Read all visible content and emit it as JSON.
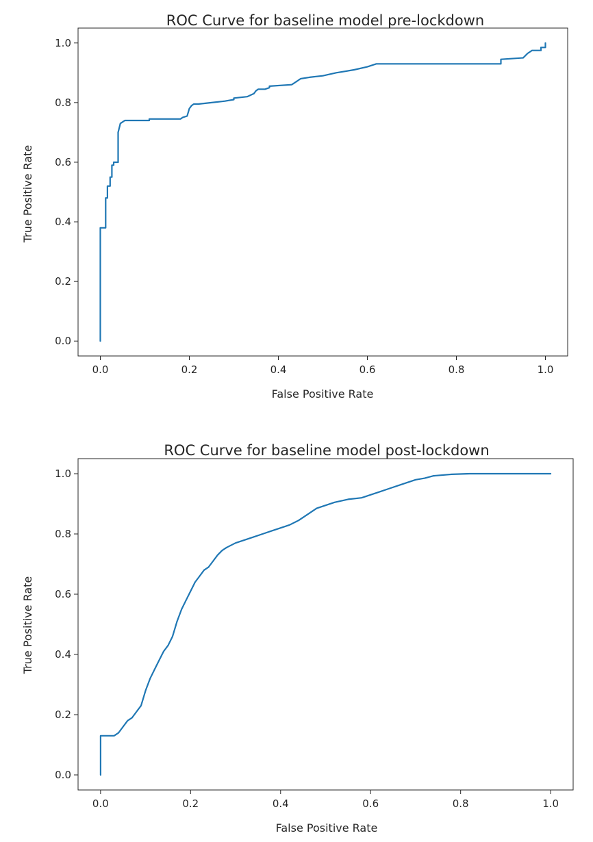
{
  "chart_data": [
    {
      "type": "line",
      "title": "ROC Curve for baseline model pre-lockdown",
      "xlabel": "False Positive Rate",
      "ylabel": "True Positive Rate",
      "xlim": [
        -0.05,
        1.05
      ],
      "ylim": [
        -0.05,
        1.05
      ],
      "xticks": [
        "0.0",
        "0.2",
        "0.4",
        "0.6",
        "0.8",
        "1.0"
      ],
      "yticks": [
        "0.0",
        "0.2",
        "0.4",
        "0.6",
        "0.8",
        "1.0"
      ],
      "grid": false,
      "color": "#1f77b4",
      "series": [
        {
          "x": [
            0.0,
            0.0,
            0.0,
            0.012,
            0.012,
            0.016,
            0.016,
            0.022,
            0.022,
            0.026,
            0.026,
            0.03,
            0.03,
            0.04,
            0.04,
            0.045,
            0.05,
            0.055,
            0.06,
            0.11,
            0.11,
            0.18,
            0.185,
            0.195,
            0.2,
            0.205,
            0.21,
            0.22,
            0.25,
            0.28,
            0.3,
            0.3,
            0.33,
            0.345,
            0.35,
            0.355,
            0.37,
            0.38,
            0.38,
            0.43,
            0.44,
            0.45,
            0.47,
            0.5,
            0.53,
            0.57,
            0.6,
            0.62,
            0.7,
            0.8,
            0.9,
            0.9,
            0.95,
            0.96,
            0.97,
            0.99,
            0.99,
            1.0,
            1.0
          ],
          "y": [
            0.0,
            0.2,
            0.38,
            0.38,
            0.48,
            0.48,
            0.52,
            0.52,
            0.55,
            0.55,
            0.59,
            0.59,
            0.6,
            0.6,
            0.7,
            0.73,
            0.735,
            0.74,
            0.74,
            0.74,
            0.745,
            0.745,
            0.75,
            0.755,
            0.78,
            0.79,
            0.795,
            0.795,
            0.8,
            0.805,
            0.81,
            0.815,
            0.82,
            0.83,
            0.84,
            0.845,
            0.845,
            0.85,
            0.855,
            0.86,
            0.87,
            0.88,
            0.885,
            0.89,
            0.9,
            0.91,
            0.92,
            0.93,
            0.93,
            0.93,
            0.93,
            0.945,
            0.95,
            0.965,
            0.975,
            0.975,
            0.985,
            0.985,
            1.0
          ]
        }
      ]
    },
    {
      "type": "line",
      "title": "ROC Curve for baseline model post-lockdown",
      "xlabel": "False Positive Rate",
      "ylabel": "True Positive Rate",
      "xlim": [
        -0.05,
        1.05
      ],
      "ylim": [
        -0.05,
        1.05
      ],
      "xticks": [
        "0.0",
        "0.2",
        "0.4",
        "0.6",
        "0.8",
        "1.0"
      ],
      "yticks": [
        "0.0",
        "0.2",
        "0.4",
        "0.6",
        "0.8",
        "1.0"
      ],
      "grid": false,
      "color": "#1f77b4",
      "series": [
        {
          "x": [
            0.0,
            0.0,
            0.03,
            0.04,
            0.05,
            0.06,
            0.07,
            0.08,
            0.09,
            0.1,
            0.11,
            0.12,
            0.13,
            0.14,
            0.15,
            0.16,
            0.17,
            0.18,
            0.19,
            0.2,
            0.21,
            0.22,
            0.23,
            0.24,
            0.25,
            0.26,
            0.27,
            0.28,
            0.3,
            0.32,
            0.34,
            0.36,
            0.38,
            0.4,
            0.42,
            0.44,
            0.46,
            0.48,
            0.5,
            0.52,
            0.55,
            0.58,
            0.6,
            0.62,
            0.64,
            0.66,
            0.68,
            0.7,
            0.72,
            0.74,
            0.78,
            0.82,
            0.9,
            1.0
          ],
          "y": [
            0.0,
            0.13,
            0.13,
            0.14,
            0.16,
            0.18,
            0.19,
            0.21,
            0.23,
            0.28,
            0.32,
            0.35,
            0.38,
            0.41,
            0.43,
            0.46,
            0.51,
            0.55,
            0.58,
            0.61,
            0.64,
            0.66,
            0.68,
            0.69,
            0.71,
            0.73,
            0.745,
            0.755,
            0.77,
            0.78,
            0.79,
            0.8,
            0.81,
            0.82,
            0.83,
            0.845,
            0.865,
            0.885,
            0.895,
            0.905,
            0.915,
            0.92,
            0.93,
            0.94,
            0.95,
            0.96,
            0.97,
            0.98,
            0.985,
            0.993,
            0.998,
            1.0,
            1.0,
            1.0
          ]
        }
      ]
    }
  ]
}
